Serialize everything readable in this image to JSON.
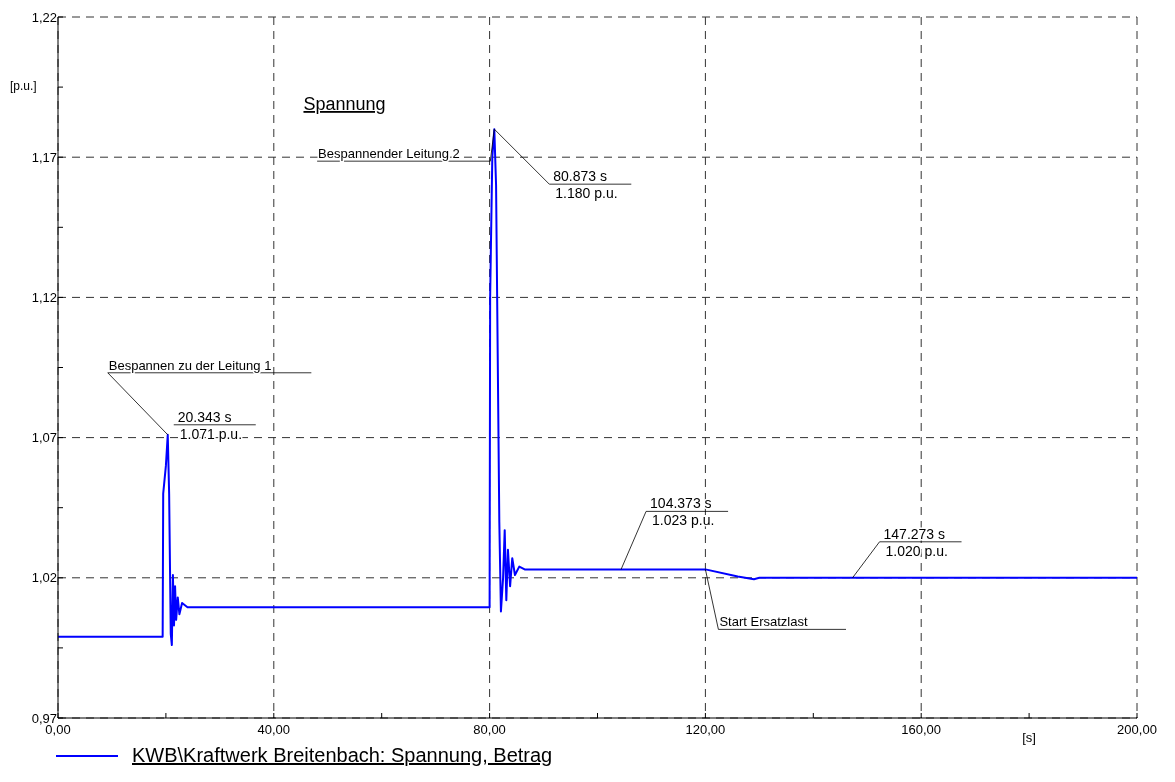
{
  "chart_data": {
    "type": "line",
    "title": "Spannung",
    "xlabel": "[s]",
    "ylabel": "[p.u.]",
    "xlim": [
      0,
      200
    ],
    "xticks": [
      {
        "value": 0,
        "label": "0,00"
      },
      {
        "value": 20,
        "label": null
      },
      {
        "value": 40,
        "label": "40,00"
      },
      {
        "value": 60,
        "label": null
      },
      {
        "value": 80,
        "label": "80,00"
      },
      {
        "value": 100,
        "label": null
      },
      {
        "value": 120,
        "label": "120,00"
      },
      {
        "value": 140,
        "label": null
      },
      {
        "value": 160,
        "label": "160,00"
      },
      {
        "value": 180,
        "label": null
      },
      {
        "value": 200,
        "label": "200,00"
      }
    ],
    "ylim": [
      0.97,
      1.22
    ],
    "yticks": [
      {
        "value": 0.97,
        "label": "0,97"
      },
      {
        "value": 0.995,
        "label": null
      },
      {
        "value": 1.02,
        "label": "1,02"
      },
      {
        "value": 1.045,
        "label": null
      },
      {
        "value": 1.07,
        "label": "1,07"
      },
      {
        "value": 1.095,
        "label": null
      },
      {
        "value": 1.12,
        "label": "1,12"
      },
      {
        "value": 1.145,
        "label": null
      },
      {
        "value": 1.17,
        "label": "1,17"
      },
      {
        "value": 1.195,
        "label": null
      },
      {
        "value": 1.22,
        "label": "1,22"
      }
    ],
    "grid": true,
    "legend": "bottom left",
    "line_style": "solid",
    "marker": "none",
    "series": [
      {
        "name": "KWB\\Kraftwerk Breitenbach: Spannung, Betrag",
        "color": "#0000ff",
        "x": [
          0,
          19.4,
          19.5,
          20.0,
          20.343,
          20.6,
          20.9,
          21.1,
          21.3,
          21.5,
          21.7,
          21.9,
          22.2,
          22.5,
          23,
          24,
          80,
          80.1,
          80.5,
          80.873,
          81.2,
          81.5,
          81.8,
          82.1,
          82.5,
          82.8,
          83.1,
          83.4,
          83.8,
          84.2,
          84.7,
          85.5,
          86.5,
          104.373,
          120,
          126,
          129,
          130,
          147.273,
          200
        ],
        "values": [
          0.999,
          0.999,
          1.05,
          1.06,
          1.071,
          1.05,
          1.0,
          0.996,
          1.021,
          1.003,
          1.017,
          1.005,
          1.013,
          1.007,
          1.011,
          1.0095,
          1.0095,
          1.12,
          1.17,
          1.18,
          1.16,
          1.1,
          1.04,
          1.008,
          1.02,
          1.037,
          1.012,
          1.03,
          1.017,
          1.027,
          1.021,
          1.024,
          1.023,
          1.023,
          1.023,
          1.0205,
          1.0195,
          1.02,
          1.02,
          1.02
        ]
      }
    ],
    "annotations": [
      {
        "text": "Bespannen zu der Leitung 1",
        "x": 20.343,
        "y": 1.071
      },
      {
        "text": "20.343 s\n1.071 p.u.",
        "x": 20.343,
        "y": 1.071
      },
      {
        "text": "Bespannender Leitung 2",
        "x": 80.873,
        "y": 1.18
      },
      {
        "text": "80.873 s\n1.180 p.u.",
        "x": 80.873,
        "y": 1.18
      },
      {
        "text": "104.373 s\n1.023 p.u.",
        "x": 104.373,
        "y": 1.023
      },
      {
        "text": "147.273 s\n1.020 p.u.",
        "x": 147.273,
        "y": 1.02
      },
      {
        "text": "Start Ersatzlast",
        "x": 120,
        "y": 1.023
      }
    ]
  }
}
